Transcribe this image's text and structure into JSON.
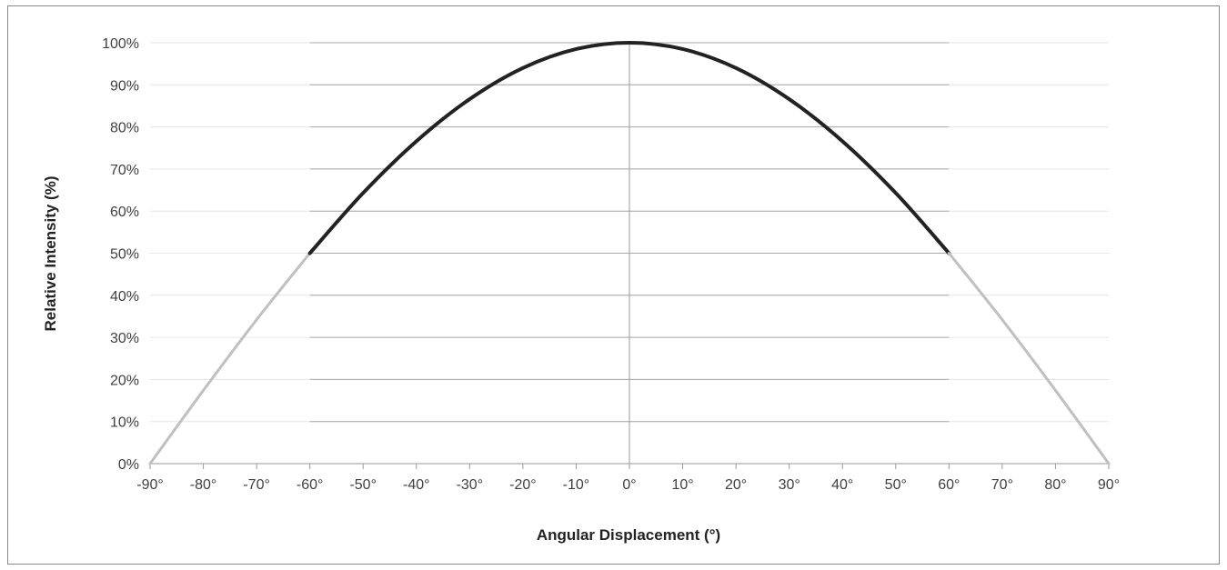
{
  "chart_data": {
    "type": "line",
    "title": "",
    "xlabel": "Angular Displacement (°)",
    "ylabel": "Relative Intensity (%)",
    "xlim": [
      -90,
      90
    ],
    "ylim": [
      0,
      100
    ],
    "x_ticks": [
      "-90°",
      "-80°",
      "-70°",
      "-60°",
      "-50°",
      "-40°",
      "-30°",
      "-20°",
      "-10°",
      "0°",
      "10°",
      "20°",
      "30°",
      "40°",
      "50°",
      "60°",
      "70°",
      "80°",
      "90°"
    ],
    "y_ticks": [
      "0%",
      "10%",
      "20%",
      "30%",
      "40%",
      "50%",
      "60%",
      "70%",
      "80%",
      "90%",
      "100%"
    ],
    "grid": true,
    "legend": "none",
    "series": [
      {
        "color": "#c0c0c0",
        "x": [
          -90,
          -80,
          -70,
          -60
        ],
        "y": [
          0,
          17.4,
          34.2,
          50
        ]
      },
      {
        "color": "#222222",
        "x": [
          -60,
          -50,
          -40,
          -30,
          -20,
          -10,
          0,
          10,
          20,
          30,
          40,
          50,
          60
        ],
        "y": [
          50,
          64.3,
          76.6,
          86.6,
          94,
          98.5,
          100,
          98.5,
          94,
          86.6,
          76.6,
          64.3,
          50
        ]
      },
      {
        "color": "#c0c0c0",
        "x": [
          60,
          70,
          80,
          90
        ],
        "y": [
          50,
          34.2,
          17.4,
          0
        ]
      }
    ]
  }
}
